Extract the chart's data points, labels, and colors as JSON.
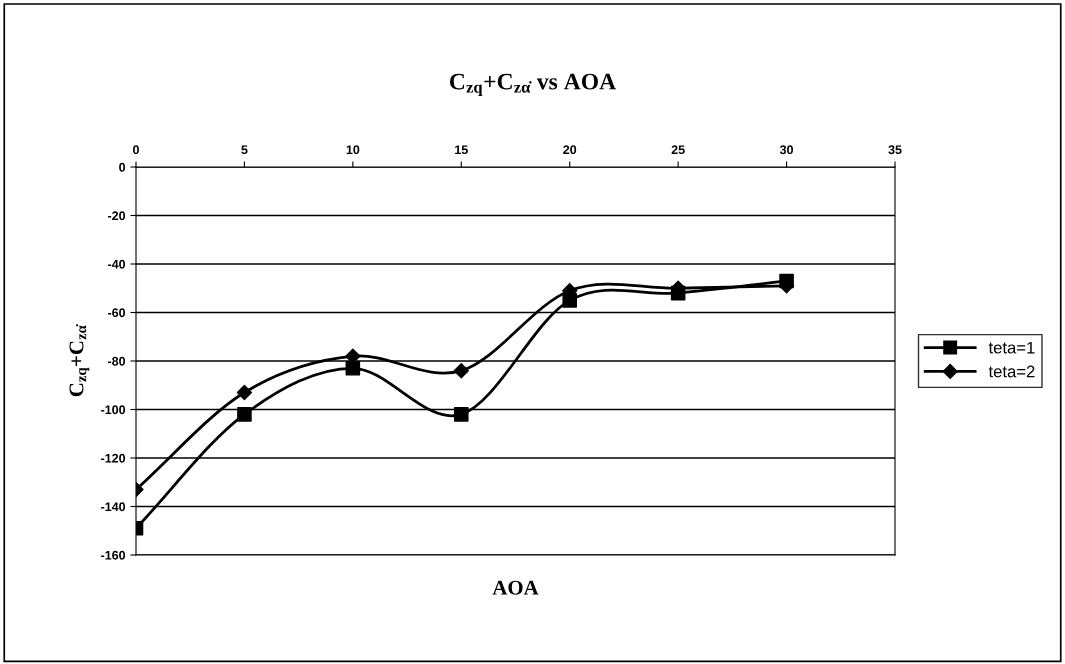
{
  "chart_data": {
    "type": "line",
    "title": "C$_{zq}$+C$_{zα̇}$ vs AOA",
    "xlabel": "AOA",
    "ylabel": "C$_{zq}$+C$_{zα̇}$",
    "x": [
      0,
      5,
      10,
      15,
      20,
      25,
      30
    ],
    "series": [
      {
        "name": "teta=1",
        "color": "#000000",
        "marker": "square",
        "values": [
          -149,
          -102,
          -83,
          -102,
          -55,
          -52,
          -47
        ]
      },
      {
        "name": "teta=2",
        "color": "#000000",
        "marker": "diamond",
        "values": [
          -133,
          -93,
          -78,
          -84,
          -51,
          -50,
          -49
        ]
      }
    ],
    "xlim": [
      0,
      35
    ],
    "xticks": [
      0,
      5,
      10,
      15,
      20,
      25,
      30,
      35
    ],
    "ylim": [
      -160,
      0
    ],
    "yticks": [
      0,
      -20,
      -40,
      -60,
      -80,
      -100,
      -120,
      -140,
      -160
    ],
    "grid": "y",
    "legend": "right",
    "line_style": "solid"
  }
}
